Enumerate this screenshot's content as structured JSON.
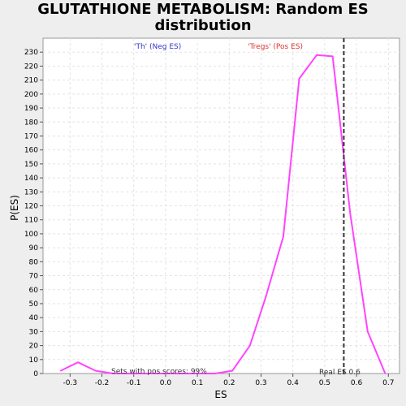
{
  "chart_data": {
    "type": "line",
    "title_line1": "GLUTATHIONE METABOLISM: Random ES",
    "title_line2": "distribution",
    "xlabel": "ES",
    "ylabel": "P(ES)",
    "xlim": [
      -0.385,
      0.735
    ],
    "ylim": [
      0,
      240
    ],
    "x_ticks": [
      -0.3,
      -0.2,
      -0.1,
      0.0,
      0.1,
      0.2,
      0.3,
      0.4,
      0.5,
      0.6,
      0.7
    ],
    "x_tick_labels": [
      "-0.3",
      "-0.2",
      "-0.1",
      "0.0",
      "0.1",
      "0.2",
      "0.3",
      "0.4",
      "0.5",
      "0.6",
      "0.7"
    ],
    "y_ticks": [
      0,
      10,
      20,
      30,
      40,
      50,
      60,
      70,
      80,
      90,
      100,
      110,
      120,
      130,
      140,
      150,
      160,
      170,
      180,
      190,
      200,
      210,
      220,
      230
    ],
    "grid": true,
    "series": [
      {
        "color": "#ff44ff",
        "x": [
          -0.33,
          -0.275,
          -0.22,
          -0.165,
          -0.11,
          -0.055,
          0.0,
          0.055,
          0.11,
          0.155,
          0.21,
          0.265,
          0.315,
          0.37,
          0.42,
          0.475,
          0.525,
          0.58,
          0.635,
          0.69
        ],
        "y": [
          2,
          8,
          2,
          0,
          0,
          0,
          0,
          0,
          0,
          0,
          2,
          20,
          55,
          98,
          211,
          228,
          227,
          115,
          30,
          0
        ]
      }
    ],
    "reference_line": {
      "x": 0.56,
      "style": "dashed",
      "color": "#333333"
    },
    "annotations": {
      "neg_label": "'Th' (Neg ES)",
      "neg_color": "#3333cc",
      "pos_label": "'Tregs' (Pos ES)",
      "pos_color": "#dd3333",
      "sets_text": "Sets with pos scores: 99%",
      "real_es_text": "Real ES 0.6"
    }
  }
}
